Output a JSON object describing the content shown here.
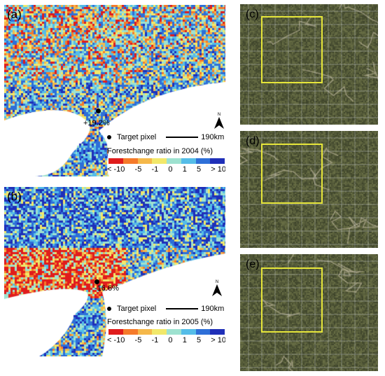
{
  "panels": {
    "a": {
      "label": "(a)",
      "target_pct": "+19.2%",
      "legend_target": "Target pixel",
      "scale_text": "190km",
      "legend_title": "Forestchange ratio in 2004 (%)",
      "north": "N"
    },
    "b": {
      "label": "(b)",
      "target_pct": "-16.6%",
      "legend_target": "Target pixel",
      "scale_text": "190km",
      "legend_title": "Forestchange ratio in 2005 (%)",
      "north": "N"
    },
    "c": {
      "label": "(c)"
    },
    "d": {
      "label": "(d)"
    },
    "e": {
      "label": "(e)"
    }
  },
  "color_scale": {
    "ticks": [
      "< -10",
      "-5",
      "-1",
      "0",
      "1",
      "5",
      "> 10"
    ],
    "colors": [
      "#e01c1c",
      "#f57a2a",
      "#f5b84a",
      "#f2e86a",
      "#9ee2d0",
      "#55bde8",
      "#2e6fd8",
      "#1f2fb8"
    ]
  },
  "colors": {
    "land_blue": "#2e62c8",
    "sea": "#ffffff",
    "box_yellow": "#e6e63a",
    "satellite_base": "#4e5234"
  }
}
